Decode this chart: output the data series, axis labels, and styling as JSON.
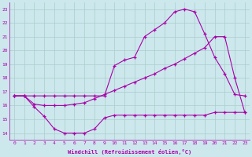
{
  "bg_color": "#cce8ec",
  "line_color": "#aa00aa",
  "grid_color": "#aacccc",
  "xlabel": "Windchill (Refroidissement éolien,°C)",
  "xlim": [
    -0.5,
    23.5
  ],
  "ylim": [
    13.5,
    23.5
  ],
  "yticks": [
    14,
    15,
    16,
    17,
    18,
    19,
    20,
    21,
    22,
    23
  ],
  "xticks": [
    0,
    1,
    2,
    3,
    4,
    5,
    6,
    7,
    8,
    9,
    10,
    11,
    12,
    13,
    14,
    15,
    16,
    17,
    18,
    19,
    20,
    21,
    22,
    23
  ],
  "line_bottom_x": [
    0,
    1,
    2,
    3,
    4,
    5,
    6,
    7,
    8,
    9,
    10,
    11,
    12,
    13,
    14,
    15,
    16,
    17,
    18,
    19,
    20,
    21,
    22,
    23
  ],
  "line_bottom_y": [
    16.7,
    16.7,
    15.9,
    15.2,
    14.3,
    14.0,
    14.0,
    14.0,
    14.3,
    15.1,
    15.3,
    15.3,
    15.3,
    15.3,
    15.3,
    15.3,
    15.3,
    15.3,
    15.3,
    15.3,
    15.5,
    15.5,
    15.5,
    15.5
  ],
  "line_top_x": [
    0,
    1,
    2,
    3,
    4,
    5,
    6,
    7,
    8,
    9,
    10,
    11,
    12,
    13,
    14,
    15,
    16,
    17,
    18,
    19,
    20,
    21,
    22,
    23
  ],
  "line_top_y": [
    16.7,
    16.7,
    16.7,
    16.7,
    16.7,
    16.7,
    16.7,
    16.7,
    16.7,
    16.7,
    18.9,
    19.3,
    19.5,
    21.0,
    21.5,
    22.0,
    22.8,
    23.0,
    22.8,
    21.2,
    19.5,
    18.3,
    16.8,
    16.7
  ],
  "line_diag_x": [
    0,
    1,
    2,
    3,
    4,
    5,
    6,
    7,
    8,
    9,
    10,
    11,
    12,
    13,
    14,
    15,
    16,
    17,
    18,
    19,
    20,
    21,
    22,
    23
  ],
  "line_diag_y": [
    16.7,
    16.7,
    16.1,
    16.0,
    16.0,
    16.0,
    16.1,
    16.2,
    16.5,
    16.8,
    17.1,
    17.4,
    17.7,
    18.0,
    18.3,
    18.7,
    19.0,
    19.4,
    19.8,
    20.2,
    21.0,
    21.0,
    18.0,
    15.5
  ]
}
